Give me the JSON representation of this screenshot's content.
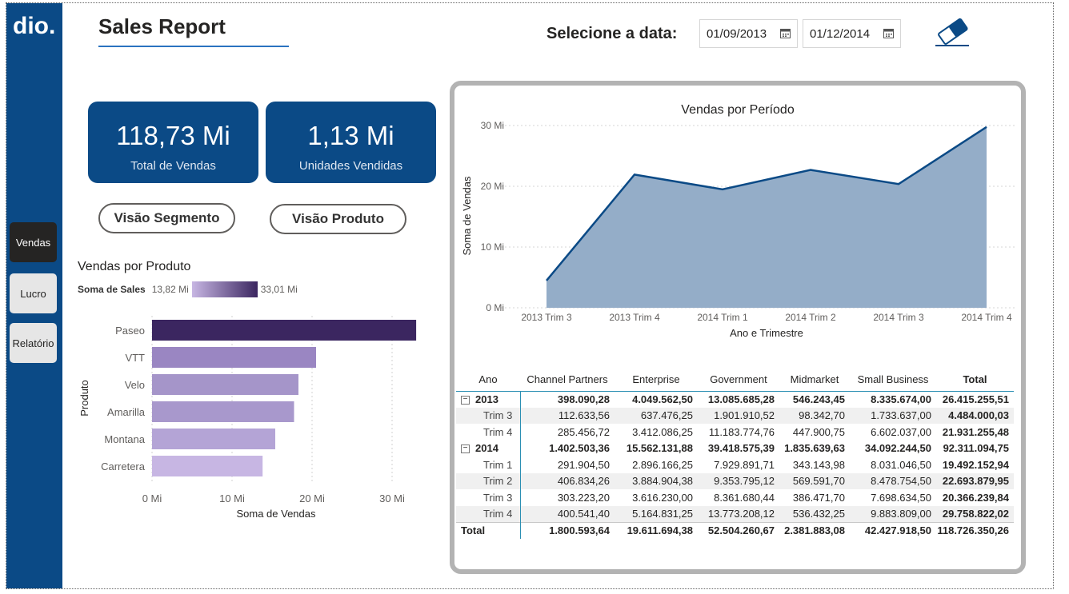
{
  "header": {
    "title": "Sales Report",
    "date_label": "Selecione a data:",
    "start_date": "01/09/2013",
    "end_date": "01/12/2014"
  },
  "sidebar": {
    "logo_text": "dio.",
    "items": [
      {
        "label": "Vendas",
        "active": true
      },
      {
        "label": "Lucro",
        "active": false
      },
      {
        "label": "Relatório",
        "active": false
      }
    ]
  },
  "kpis": [
    {
      "value": "118,73 Mi",
      "label": "Total de Vendas"
    },
    {
      "value": "1,13 Mi",
      "label": "Unidades Vendidas"
    }
  ],
  "buttons": {
    "segment": "Visão Segmento",
    "product": "Visão Produto"
  },
  "bar_chart_header": {
    "title": "Vendas por Produto",
    "legend_title": "Soma de  Sales",
    "legend_min": "13,82 Mi",
    "legend_max": "33,01 Mi"
  },
  "chart_data": [
    {
      "type": "bar",
      "orientation": "horizontal",
      "title": "Vendas por Produto",
      "categories": [
        "Paseo",
        "VTT",
        "Velo",
        "Amarilla",
        "Montana",
        "Carretera"
      ],
      "values": [
        33.01,
        20.5,
        18.3,
        17.75,
        15.4,
        13.82
      ],
      "colors": [
        "#3b2660",
        "#9a86c2",
        "#a595c9",
        "#a898cc",
        "#b4a4d6",
        "#c7b6e3"
      ],
      "xlabel": "Soma de Vendas",
      "ylabel": "Produto",
      "xlim": [
        0,
        33
      ],
      "xticks": [
        "0 Mi",
        "10 Mi",
        "20 Mi",
        "30 Mi"
      ],
      "xtick_values": [
        0,
        10,
        20,
        30
      ]
    },
    {
      "type": "area",
      "title": "Vendas por Período",
      "categories": [
        "2013 Trim 3",
        "2013 Trim 4",
        "2014 Trim 1",
        "2014 Trim 2",
        "2014 Trim 3",
        "2014 Trim 4"
      ],
      "values": [
        4.48,
        21.93,
        19.49,
        22.69,
        20.37,
        29.76
      ],
      "xlabel": "Ano e Trimestre",
      "ylabel": "Soma de Vendas",
      "ylim": [
        0,
        30
      ],
      "yticks": [
        "0 Mi",
        "10 Mi",
        "20 Mi",
        "30 Mi"
      ],
      "ytick_values": [
        0,
        10,
        20,
        30
      ],
      "line_color": "#0b4a86",
      "fill_color": "#94adc8"
    }
  ],
  "matrix": {
    "columns": [
      "Ano",
      "Channel Partners",
      "Enterprise",
      "Government",
      "Midmarket",
      "Small Business",
      "Total"
    ],
    "expand_glyph": "⊟",
    "rows": [
      {
        "kind": "year",
        "label": "2013",
        "cells": [
          "398.090,28",
          "4.049.562,50",
          "13.085.685,28",
          "546.243,45",
          "8.335.674,00",
          "26.415.255,51"
        ]
      },
      {
        "kind": "sub",
        "label": "Trim 3",
        "cells": [
          "112.633,56",
          "637.476,25",
          "1.901.910,52",
          "98.342,70",
          "1.733.637,00",
          "4.484.000,03"
        ]
      },
      {
        "kind": "sub",
        "label": "Trim 4",
        "cells": [
          "285.456,72",
          "3.412.086,25",
          "11.183.774,76",
          "447.900,75",
          "6.602.037,00",
          "21.931.255,48"
        ]
      },
      {
        "kind": "year",
        "label": "2014",
        "cells": [
          "1.402.503,36",
          "15.562.131,88",
          "39.418.575,39",
          "1.835.639,63",
          "34.092.244,50",
          "92.311.094,75"
        ]
      },
      {
        "kind": "sub",
        "label": "Trim 1",
        "cells": [
          "291.904,50",
          "2.896.166,25",
          "7.929.891,71",
          "343.143,98",
          "8.031.046,50",
          "19.492.152,94"
        ]
      },
      {
        "kind": "sub",
        "label": "Trim 2",
        "cells": [
          "406.834,26",
          "3.884.904,38",
          "9.353.795,12",
          "569.591,70",
          "8.478.754,50",
          "22.693.879,95"
        ]
      },
      {
        "kind": "sub",
        "label": "Trim 3",
        "cells": [
          "303.223,20",
          "3.616.230,00",
          "8.361.680,44",
          "386.471,70",
          "7.698.634,50",
          "20.366.239,84"
        ]
      },
      {
        "kind": "sub",
        "label": "Trim 4",
        "cells": [
          "400.541,40",
          "5.164.831,25",
          "13.773.208,12",
          "536.432,25",
          "9.883.809,00",
          "29.758.822,02"
        ]
      },
      {
        "kind": "grand",
        "label": "Total",
        "cells": [
          "1.800.593,64",
          "19.611.694,38",
          "52.504.260,67",
          "2.381.883,08",
          "42.427.918,50",
          "118.726.350,26"
        ]
      }
    ]
  },
  "colors": {
    "brand": "#0b4a86",
    "accent": "#2b73c0",
    "bar_dark": "#3b2660",
    "bar_light": "#c7b6e3"
  }
}
